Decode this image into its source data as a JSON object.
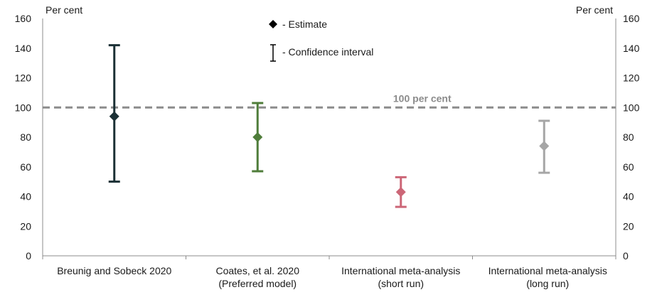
{
  "chart_data": {
    "type": "scatter",
    "left_axis_unit": "Per cent",
    "right_axis_unit": "Per cent",
    "ylim": [
      0,
      160
    ],
    "yticks": [
      0,
      20,
      40,
      60,
      80,
      100,
      120,
      140,
      160
    ],
    "categories": [
      [
        "Breunig and Sobeck 2020",
        ""
      ],
      [
        "Coates, et al. 2020",
        "(Preferred model)"
      ],
      [
        "International meta-analysis",
        "(short run)"
      ],
      [
        "International meta-analysis",
        "(long run)"
      ]
    ],
    "points": [
      {
        "estimate": 94,
        "low": 50,
        "high": 142,
        "color": "#1b3035"
      },
      {
        "estimate": 80,
        "low": 57,
        "high": 103,
        "color": "#4f7d3a"
      },
      {
        "estimate": 43,
        "low": 33,
        "high": 53,
        "color": "#cc6677"
      },
      {
        "estimate": 74,
        "low": 56,
        "high": 91,
        "color": "#a6a6a6"
      }
    ],
    "reference_line": {
      "value": 100,
      "label": "100 per cent",
      "color": "#8c8c8c"
    },
    "legend": {
      "estimate_label": "- Estimate",
      "interval_label": "- Confidence  interval",
      "position": "top-center"
    },
    "grid": false
  }
}
